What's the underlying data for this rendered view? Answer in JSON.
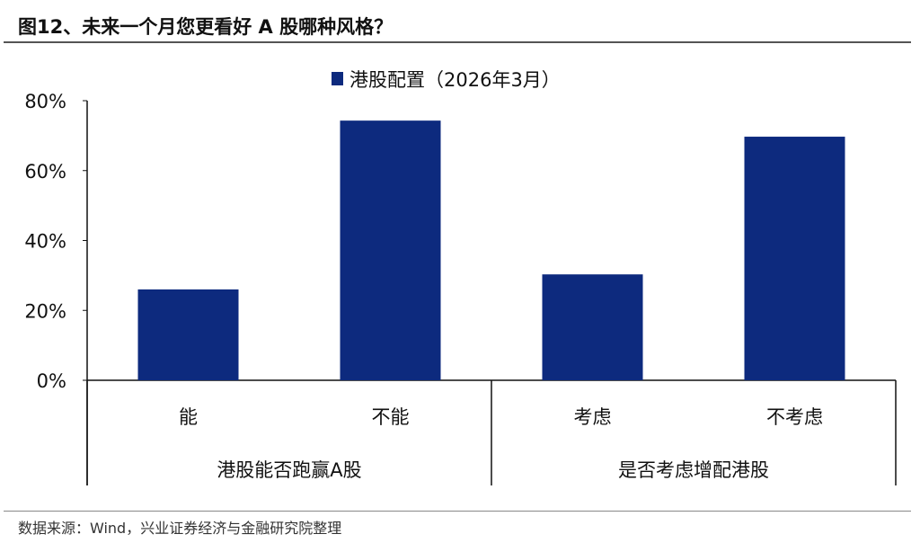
{
  "header": {
    "title": "图12、未来一个月您更看好 A 股哪种风格？"
  },
  "source": "数据来源：Wind，兴业证券经济与金融研究院整理",
  "chart_data": {
    "type": "bar",
    "legend_position": "top",
    "grid": false,
    "color": "#0d2a7e",
    "series": [
      {
        "name": "港股配置（2026年3月）",
        "values": [
          26,
          74.3,
          30.3,
          69.7
        ]
      }
    ],
    "categories": [
      "能",
      "不能",
      "考虑",
      "不考虑"
    ],
    "groups": [
      {
        "label": "港股能否跑赢A股",
        "categories": [
          "能",
          "不能"
        ]
      },
      {
        "label": "是否考虑增配港股",
        "categories": [
          "考虑",
          "不考虑"
        ]
      }
    ],
    "ylim": [
      0,
      80
    ],
    "yticks": [
      "0%",
      "20%",
      "40%",
      "60%",
      "80%"
    ],
    "xlabel": "",
    "ylabel": ""
  }
}
